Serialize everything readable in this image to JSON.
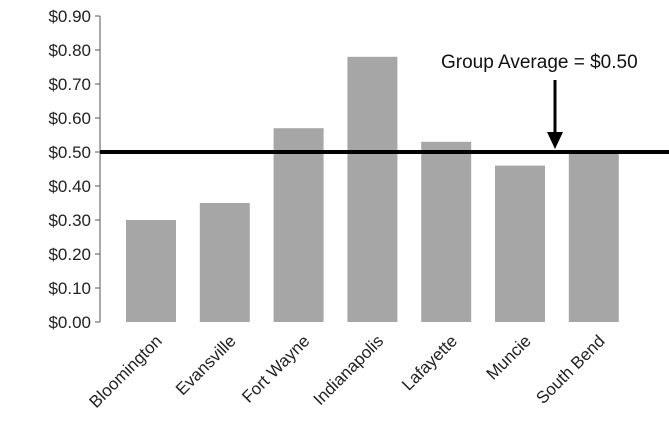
{
  "chart_data": {
    "type": "bar",
    "categories": [
      "Bloomington",
      "Evansville",
      "Fort Wayne",
      "Indianapolis",
      "Lafayette",
      "Muncie",
      "South Bend"
    ],
    "values": [
      0.3,
      0.35,
      0.57,
      0.78,
      0.53,
      0.46,
      0.5
    ],
    "ylim": [
      0,
      0.9
    ],
    "yticks": [
      "$0.00",
      "$0.10",
      "$0.20",
      "$0.30",
      "$0.40",
      "$0.50",
      "$0.60",
      "$0.70",
      "$0.80",
      "$0.90"
    ],
    "reference_line": {
      "value": 0.5,
      "label": "Group Average = $0.50",
      "color": "#000000"
    },
    "bar_color": "#a6a6a6",
    "grid": false,
    "legend": "none",
    "title": "",
    "xlabel": "",
    "ylabel": ""
  }
}
